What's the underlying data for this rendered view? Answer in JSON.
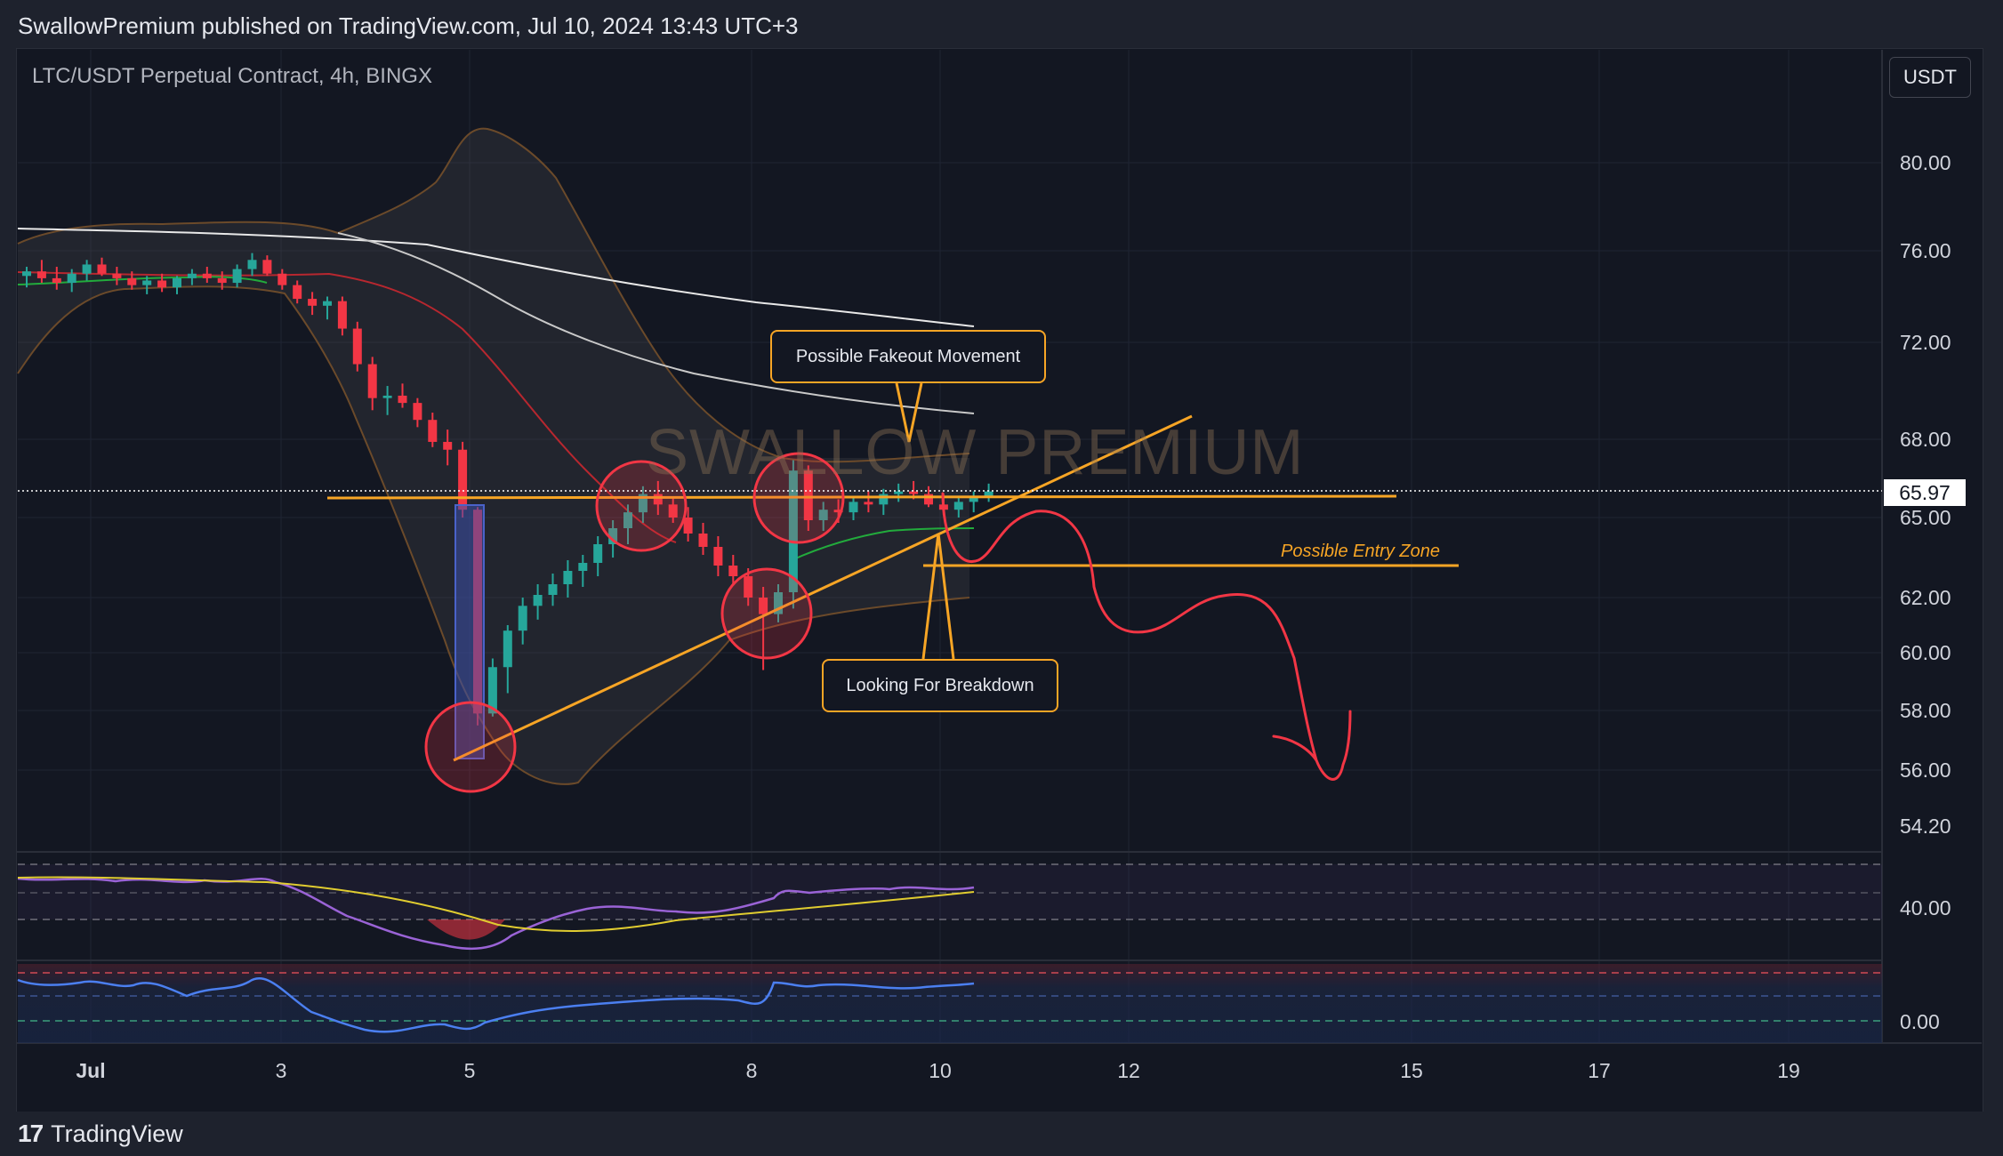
{
  "header": {
    "published_text": "SwallowPremium published on TradingView.com, Jul 10, 2024 13:43 UTC+3"
  },
  "footer": {
    "logo_mark": "17",
    "logo_text": "TradingView"
  },
  "toolbar": {
    "currency_label": "USDT"
  },
  "watermark": "SWALLOW PREMIUM",
  "annotations": {
    "fakeout": "Possible Fakeout Movement",
    "breakdown": "Looking For Breakdown",
    "entry_zone": "Possible Entry Zone"
  },
  "colors": {
    "background": "#131722",
    "up_candle": "#26a69a",
    "down_candle": "#f23645",
    "annotation": "#f7a525",
    "drawing_red": "#f23645",
    "ma_green": "#22ab3c",
    "rsi_line": "#9a63d6",
    "rsi_signal": "#e0cc30",
    "osc_line": "#4b7ff0"
  },
  "chart_data": {
    "type": "candlestick",
    "symbol": "LTC/USDT Perpetual Contract, 4h, BINGX",
    "currency": "USDT",
    "last_price": "65.97",
    "y_ticks": [
      "80.00",
      "76.00",
      "72.00",
      "68.00",
      "65.00",
      "62.00",
      "60.00",
      "58.00",
      "56.00",
      "54.20"
    ],
    "x_ticks": [
      "Jul",
      "3",
      "5",
      "8",
      "10",
      "12",
      "15",
      "17",
      "19"
    ],
    "indicator_ticks": {
      "rsi": "40.00",
      "oscillator": "0.00"
    },
    "ylim": [
      53.5,
      82
    ],
    "candles": [
      [
        74.9,
        75.3,
        74.4,
        75.1
      ],
      [
        75.1,
        75.6,
        74.6,
        74.8
      ],
      [
        74.8,
        75.3,
        74.3,
        74.6
      ],
      [
        74.6,
        75.2,
        74.2,
        75.0
      ],
      [
        75.0,
        75.6,
        74.7,
        75.4
      ],
      [
        75.4,
        75.7,
        74.9,
        75.0
      ],
      [
        75.0,
        75.3,
        74.5,
        74.8
      ],
      [
        74.8,
        75.1,
        74.3,
        74.5
      ],
      [
        74.5,
        74.9,
        74.1,
        74.7
      ],
      [
        74.7,
        75.0,
        74.2,
        74.4
      ],
      [
        74.4,
        74.9,
        74.1,
        74.8
      ],
      [
        74.8,
        75.2,
        74.5,
        75.0
      ],
      [
        75.0,
        75.3,
        74.6,
        74.8
      ],
      [
        74.8,
        75.1,
        74.3,
        74.6
      ],
      [
        74.6,
        75.4,
        74.4,
        75.2
      ],
      [
        75.2,
        75.9,
        74.9,
        75.6
      ],
      [
        75.6,
        75.8,
        74.9,
        75.0
      ],
      [
        75.0,
        75.2,
        74.3,
        74.5
      ],
      [
        74.5,
        74.7,
        73.7,
        73.9
      ],
      [
        73.9,
        74.2,
        73.2,
        73.6
      ],
      [
        73.6,
        74.0,
        73.0,
        73.8
      ],
      [
        73.8,
        74.0,
        72.3,
        72.6
      ],
      [
        72.6,
        72.9,
        70.8,
        71.1
      ],
      [
        71.1,
        71.4,
        69.2,
        69.7
      ],
      [
        69.7,
        70.2,
        69.0,
        69.8
      ],
      [
        69.8,
        70.3,
        69.3,
        69.5
      ],
      [
        69.5,
        69.7,
        68.5,
        68.8
      ],
      [
        68.8,
        69.1,
        67.7,
        67.9
      ],
      [
        67.9,
        68.4,
        67.0,
        67.6
      ],
      [
        67.6,
        67.9,
        65.0,
        65.3
      ],
      [
        65.3,
        65.4,
        57.5,
        57.9
      ],
      [
        57.9,
        59.8,
        57.8,
        59.5
      ],
      [
        59.5,
        61.0,
        58.6,
        60.8
      ],
      [
        60.8,
        62.0,
        60.3,
        61.7
      ],
      [
        61.7,
        62.5,
        61.2,
        62.1
      ],
      [
        62.1,
        62.9,
        61.7,
        62.5
      ],
      [
        62.5,
        63.4,
        62.0,
        63.0
      ],
      [
        63.0,
        63.6,
        62.4,
        63.3
      ],
      [
        63.3,
        64.3,
        62.8,
        64.0
      ],
      [
        64.0,
        64.9,
        63.5,
        64.6
      ],
      [
        64.6,
        65.5,
        64.0,
        65.2
      ],
      [
        65.2,
        66.2,
        64.8,
        65.9
      ],
      [
        65.9,
        66.4,
        65.1,
        65.5
      ],
      [
        65.5,
        65.8,
        64.8,
        65.0
      ],
      [
        65.0,
        65.4,
        64.1,
        64.4
      ],
      [
        64.4,
        64.8,
        63.6,
        63.9
      ],
      [
        63.9,
        64.3,
        62.8,
        63.2
      ],
      [
        63.2,
        63.6,
        62.5,
        62.8
      ],
      [
        62.8,
        63.1,
        61.7,
        62.0
      ],
      [
        62.0,
        62.4,
        59.4,
        61.4
      ],
      [
        61.4,
        62.5,
        61.1,
        62.2
      ],
      [
        62.2,
        67.2,
        61.6,
        66.8
      ],
      [
        66.8,
        67.0,
        64.5,
        64.9
      ],
      [
        64.9,
        65.6,
        64.5,
        65.3
      ],
      [
        65.3,
        65.7,
        64.8,
        65.2
      ],
      [
        65.2,
        65.8,
        64.9,
        65.6
      ],
      [
        65.6,
        66.0,
        65.2,
        65.5
      ],
      [
        65.5,
        66.1,
        65.1,
        65.9
      ],
      [
        65.9,
        66.3,
        65.6,
        66.0
      ],
      [
        66.0,
        66.4,
        65.7,
        65.9
      ],
      [
        65.9,
        66.2,
        65.4,
        65.5
      ],
      [
        65.5,
        65.9,
        65.1,
        65.3
      ],
      [
        65.3,
        65.8,
        65.0,
        65.6
      ],
      [
        65.6,
        66.0,
        65.2,
        65.8
      ],
      [
        65.8,
        66.3,
        65.6,
        66.0
      ]
    ]
  }
}
